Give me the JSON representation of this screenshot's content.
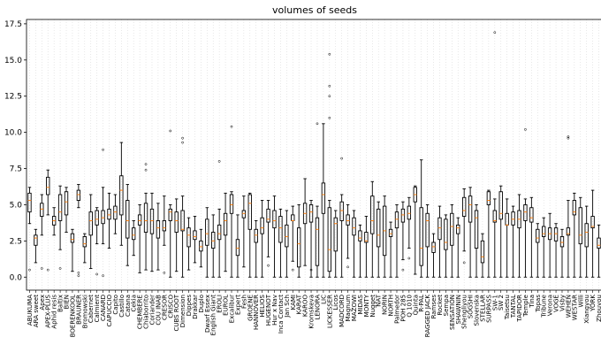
{
  "chart_data": {
    "type": "box",
    "title": "volumes of seeds",
    "xlabel": "",
    "ylabel": "",
    "ylim": [
      -0.9,
      17.8
    ],
    "yticks": [
      0.0,
      2.5,
      5.0,
      7.5,
      10.0,
      12.5,
      15.0,
      17.5
    ],
    "ytick_labels": [
      "0.0",
      "2.5",
      "5.0",
      "7.5",
      "10.0",
      "12.5",
      "15.0",
      "17.5"
    ],
    "grid": "vertical dotted",
    "colors": {
      "box": "#000000",
      "median": "#ff7f0e",
      "grid": "#d9d9d9"
    },
    "categories": [
      "ABUKUMA",
      "ARA sweet",
      "Apex",
      "APEX-PLUS",
      "Aphid resis",
      "Baltix",
      "BIEN",
      "BOERENKOOL",
      "BRAUNER",
      "Bromowski",
      "Cabernet",
      "Calmient",
      "CANARD",
      "CAPUCCIO",
      "Capito",
      "Castillo",
      "Catana",
      "Cekia",
      "CHEMBERE",
      "Chiaborrito",
      "Coriander",
      "COU INAB",
      "CRESOR",
      "CRISCO",
      "CUBS ROOT",
      "Dimension",
      "Dippes",
      "Drakkar",
      "Duplo",
      "Dwarf Essex",
      "English Giant",
      "EROLI",
      "EUROL",
      "Excalibur",
      "Expert",
      "Fesh",
      "GROENE",
      "HANNOVER",
      "HELIOS",
      "HUGENOT",
      "Hur x Nav",
      "Inca Contact",
      "Jan Sch",
      "KAMI",
      "KARAT",
      "KAROO",
      "Kromskeva",
      "LENORA",
      "LIC",
      "LICKESSER",
      "Licos",
      "MADCORD",
      "Magnum",
      "MAZOWI",
      "MIDAS",
      "MONTY",
      "Nugget",
      "NAT",
      "NORIN",
      "NORTH",
      "Palmedor",
      "POH 285",
      "Q 1010",
      "Quinta",
      "R-PAL",
      "RAGGED JACK",
      "Ramses",
      "Rocket",
      "Sempa",
      "SENSATION",
      "SHAWNIN",
      "Shengliyou",
      "SOGSHI",
      "Slovenska",
      "STELLAR",
      "SURPASS",
      "SW-1",
      "SW 2",
      "Taisetsu",
      "TANTAL",
      "TAPIDOR",
      "Temple",
      "Tina",
      "Topas",
      "Tribune",
      "Verona",
      "VOGE",
      "Visby",
      "WEHEN",
      "WESTAR",
      "Willi",
      "Xiangyou",
      "YORK",
      "Zhouyou"
    ],
    "series": [
      {
        "q1": [
          4.5,
          2.2,
          4.2,
          5.7,
          3.6,
          3.9,
          4.3,
          2.4,
          5.3,
          2.1,
          2.9,
          3.6,
          3.7,
          4.0,
          4.0,
          4.3,
          2.7,
          2.6,
          3.6,
          3.1,
          3.0,
          2.7,
          3.2,
          3.9,
          3.1,
          3.2,
          2.1,
          2.6,
          1.8,
          2.2,
          2.0,
          2.6,
          2.9,
          4.4,
          1.5,
          4.1,
          3.3,
          2.4,
          3.0,
          3.8,
          3.4,
          2.4,
          2.1,
          3.9,
          0.7,
          3.7,
          3.8,
          0.8,
          4.4,
          0.4,
          1.8,
          3.9,
          3.6,
          2.9,
          2.5,
          2.4,
          3.0,
          2.1,
          1.5,
          2.8,
          3.4,
          3.8,
          4.0,
          5.2,
          0.8,
          2.1,
          1.7,
          2.6,
          1.9,
          2.2,
          3.0,
          4.2,
          3.8,
          2.0,
          1.0,
          5.0,
          3.8,
          4.0,
          3.6,
          3.6,
          3.4,
          3.9,
          3.8,
          2.4,
          2.8,
          2.6,
          2.5,
          2.1,
          2.9,
          4.3,
          2.3,
          2.1,
          3.4,
          2.0,
          2.9
        ],
        "median": [
          5.3,
          2.7,
          4.7,
          6.2,
          3.9,
          4.5,
          5.2,
          2.6,
          5.7,
          2.3,
          3.9,
          4.0,
          4.1,
          4.3,
          4.5,
          6.0,
          3.9,
          2.9,
          3.9,
          3.9,
          3.9,
          3.4,
          3.4,
          4.5,
          3.9,
          3.3,
          2.9,
          2.8,
          2.1,
          3.0,
          2.5,
          3.0,
          3.9,
          5.0,
          2.0,
          4.4,
          5.1,
          2.9,
          3.4,
          4.0,
          3.9,
          3.4,
          2.8,
          3.9,
          2.3,
          4.4,
          4.5,
          3.3,
          5.7,
          1.9,
          3.7,
          4.6,
          3.9,
          3.4,
          2.7,
          2.5,
          3.9,
          2.9,
          3.2,
          3.0,
          4.0,
          4.3,
          4.4,
          5.7,
          2.0,
          3.9,
          2.1,
          3.4,
          2.4,
          3.5,
          3.4,
          4.6,
          5.0,
          4.1,
          1.4,
          5.3,
          3.9,
          4.4,
          3.6,
          4.0,
          4.0,
          4.5,
          4.1,
          2.7,
          3.0,
          3.0,
          3.0,
          2.4,
          3.0,
          4.5,
          2.9,
          3.1,
          3.5,
          2.2,
          3.4
        ],
        "q3": [
          5.8,
          2.9,
          5.1,
          6.9,
          4.2,
          5.7,
          5.9,
          3.0,
          6.0,
          2.8,
          4.5,
          4.6,
          4.6,
          4.7,
          4.9,
          7.0,
          5.3,
          3.4,
          4.3,
          5.1,
          4.7,
          3.9,
          3.9,
          4.7,
          4.5,
          4.6,
          3.4,
          3.2,
          2.5,
          4.0,
          3.1,
          3.6,
          4.4,
          5.7,
          2.6,
          4.6,
          5.7,
          3.3,
          4.1,
          4.7,
          4.6,
          4.2,
          3.6,
          4.3,
          3.4,
          5.1,
          5.0,
          4.1,
          6.5,
          4.8,
          4.1,
          5.2,
          4.3,
          4.1,
          3.2,
          3.1,
          5.6,
          4.7,
          4.9,
          3.3,
          4.5,
          4.7,
          4.9,
          6.2,
          4.8,
          4.4,
          2.4,
          4.1,
          4.0,
          4.4,
          3.6,
          5.5,
          5.6,
          4.6,
          2.5,
          5.9,
          4.6,
          5.9,
          4.4,
          4.5,
          4.6,
          5.0,
          4.8,
          3.3,
          3.5,
          3.4,
          3.4,
          2.8,
          3.4,
          5.3,
          4.8,
          3.7,
          4.2,
          2.7,
          3.7
        ],
        "whislo": [
          3.7,
          1.0,
          2.9,
          4.3,
          2.9,
          1.9,
          3.1,
          0.4,
          4.8,
          1.0,
          0.6,
          2.3,
          2.3,
          2.0,
          3.0,
          2.2,
          0.8,
          1.5,
          0.3,
          0.5,
          0.4,
          0.5,
          2.2,
          0.0,
          0.4,
          0.0,
          0.5,
          1.0,
          0.7,
          0.0,
          0.0,
          0.0,
          0.4,
          0.0,
          0.0,
          0.7,
          0.0,
          0.0,
          0.0,
          1.4,
          0.0,
          0.0,
          0.0,
          1.1,
          0.0,
          0.8,
          0.0,
          0.0,
          0.0,
          0.0,
          0.0,
          0.0,
          1.3,
          0.0,
          0.0,
          0.0,
          0.0,
          0.0,
          0.0,
          0.0,
          0.0,
          1.2,
          2.0,
          0.2,
          0.0,
          0.0,
          0.0,
          0.0,
          0.0,
          0.0,
          0.0,
          1.8,
          0.0,
          0.0,
          0.0,
          0.0,
          0.0,
          0.0,
          0.0,
          0.0,
          0.0,
          0.0,
          0.0,
          0.0,
          0.0,
          0.0,
          0.0,
          0.0,
          0.0,
          0.0,
          0.0,
          0.0,
          0.0,
          0.0,
          0.0
        ],
        "whishi": [
          6.2,
          3.3,
          5.7,
          7.4,
          4.8,
          6.3,
          6.2,
          3.3,
          6.4,
          3.0,
          5.7,
          4.8,
          6.2,
          5.8,
          5.7,
          9.3,
          6.4,
          3.9,
          5.0,
          5.8,
          5.8,
          5.1,
          5.6,
          5.0,
          5.4,
          5.6,
          4.1,
          4.2,
          3.3,
          4.8,
          4.3,
          4.7,
          5.8,
          5.9,
          4.3,
          5.6,
          5.8,
          3.9,
          5.3,
          5.3,
          5.6,
          4.7,
          4.6,
          4.9,
          5.0,
          6.8,
          5.3,
          4.9,
          10.6,
          5.3,
          4.6,
          5.7,
          5.0,
          4.6,
          3.6,
          4.2,
          6.6,
          5.2,
          5.6,
          3.8,
          5.0,
          5.2,
          5.5,
          6.3,
          8.1,
          5.0,
          3.0,
          4.9,
          4.3,
          5.0,
          4.1,
          6.1,
          6.2,
          5.0,
          3.0,
          6.0,
          5.4,
          6.3,
          5.4,
          4.9,
          5.7,
          5.4,
          5.5,
          3.7,
          4.1,
          4.4,
          3.7,
          3.3,
          5.3,
          5.8,
          5.5,
          4.9,
          6.0,
          3.6,
          4.2
        ],
        "fliers_high": [
          [],
          [],
          [],
          [],
          [],
          [],
          [],
          [],
          [],
          [],
          [],
          [],
          [
            8.8
          ],
          [],
          [],
          [],
          [],
          [],
          [],
          [
            7.8,
            7.4
          ],
          [],
          [],
          [],
          [
            10.1
          ],
          [],
          [
            9.3,
            9.6
          ],
          [],
          [],
          [],
          [],
          [],
          [
            8.0
          ],
          [],
          [
            10.4
          ],
          [],
          [],
          [],
          [],
          [],
          [],
          [],
          [],
          [],
          [],
          [],
          [],
          [],
          [
            10.6
          ],
          [],
          [
            15.4,
            13.2,
            12.5,
            11.0
          ],
          [],
          [
            8.2
          ],
          [],
          [],
          [],
          [],
          [],
          [],
          [],
          [],
          [],
          [],
          [],
          [],
          [],
          [],
          [],
          [],
          [],
          [],
          [],
          [],
          [],
          [],
          [],
          [],
          [
            16.9
          ],
          [],
          [],
          [],
          [],
          [
            10.2
          ],
          [],
          [],
          [],
          [],
          [],
          [],
          [
            9.6,
            9.7
          ],
          [],
          [],
          [],
          [],
          [],
          []
        ],
        "fliers_low": [
          [
            0.5
          ],
          [],
          [
            0.6
          ],
          [
            0.5
          ],
          [],
          [
            0.6
          ],
          [],
          [],
          [
            0.3,
            0.1
          ],
          [],
          [],
          [
            0.2
          ],
          [
            0.1
          ],
          [],
          [],
          [],
          [],
          [],
          [],
          [],
          [],
          [],
          [
            0.3
          ],
          [],
          [],
          [],
          [],
          [],
          [],
          [],
          [],
          [],
          [],
          [],
          [],
          [],
          [],
          [],
          [],
          [
            0.8
          ],
          [],
          [],
          [],
          [
            0.5
          ],
          [],
          [],
          [
            0.5
          ],
          [],
          [],
          [],
          [],
          [],
          [
            0.7
          ],
          [],
          [],
          [],
          [],
          [],
          [],
          [],
          [],
          [
            0.5
          ],
          [
            1.3
          ],
          [],
          [],
          [],
          [],
          [],
          [],
          [],
          [],
          [
            1.0
          ],
          [],
          [],
          [],
          [],
          [],
          [],
          [],
          [],
          [],
          [],
          [],
          [],
          [],
          [],
          [],
          [],
          [],
          [],
          [],
          [],
          [],
          [],
          []
        ]
      }
    ]
  }
}
